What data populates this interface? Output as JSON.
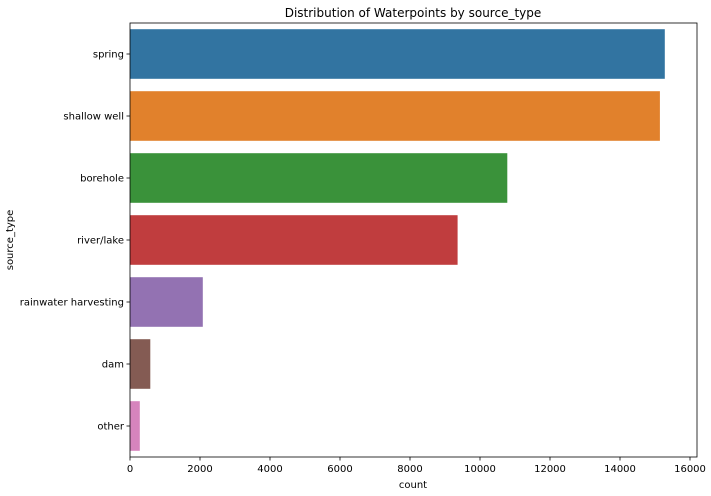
{
  "chart_data": {
    "type": "bar",
    "orientation": "horizontal",
    "title": "Distribution of Waterpoints by source_type",
    "xlabel": "count",
    "ylabel": "source_type",
    "categories": [
      "spring",
      "shallow well",
      "borehole",
      "river/lake",
      "rainwater harvesting",
      "dam",
      "other"
    ],
    "values": [
      15280,
      15140,
      10780,
      9360,
      2080,
      580,
      280
    ],
    "colors": [
      "#3274a1",
      "#e1812c",
      "#3a923a",
      "#c03d3e",
      "#9372b2",
      "#845b53",
      "#d684bd"
    ],
    "xlim": [
      0,
      16200
    ],
    "xticks": [
      0,
      2000,
      4000,
      6000,
      8000,
      10000,
      12000,
      14000,
      16000
    ],
    "grid": false,
    "legend": "none"
  }
}
